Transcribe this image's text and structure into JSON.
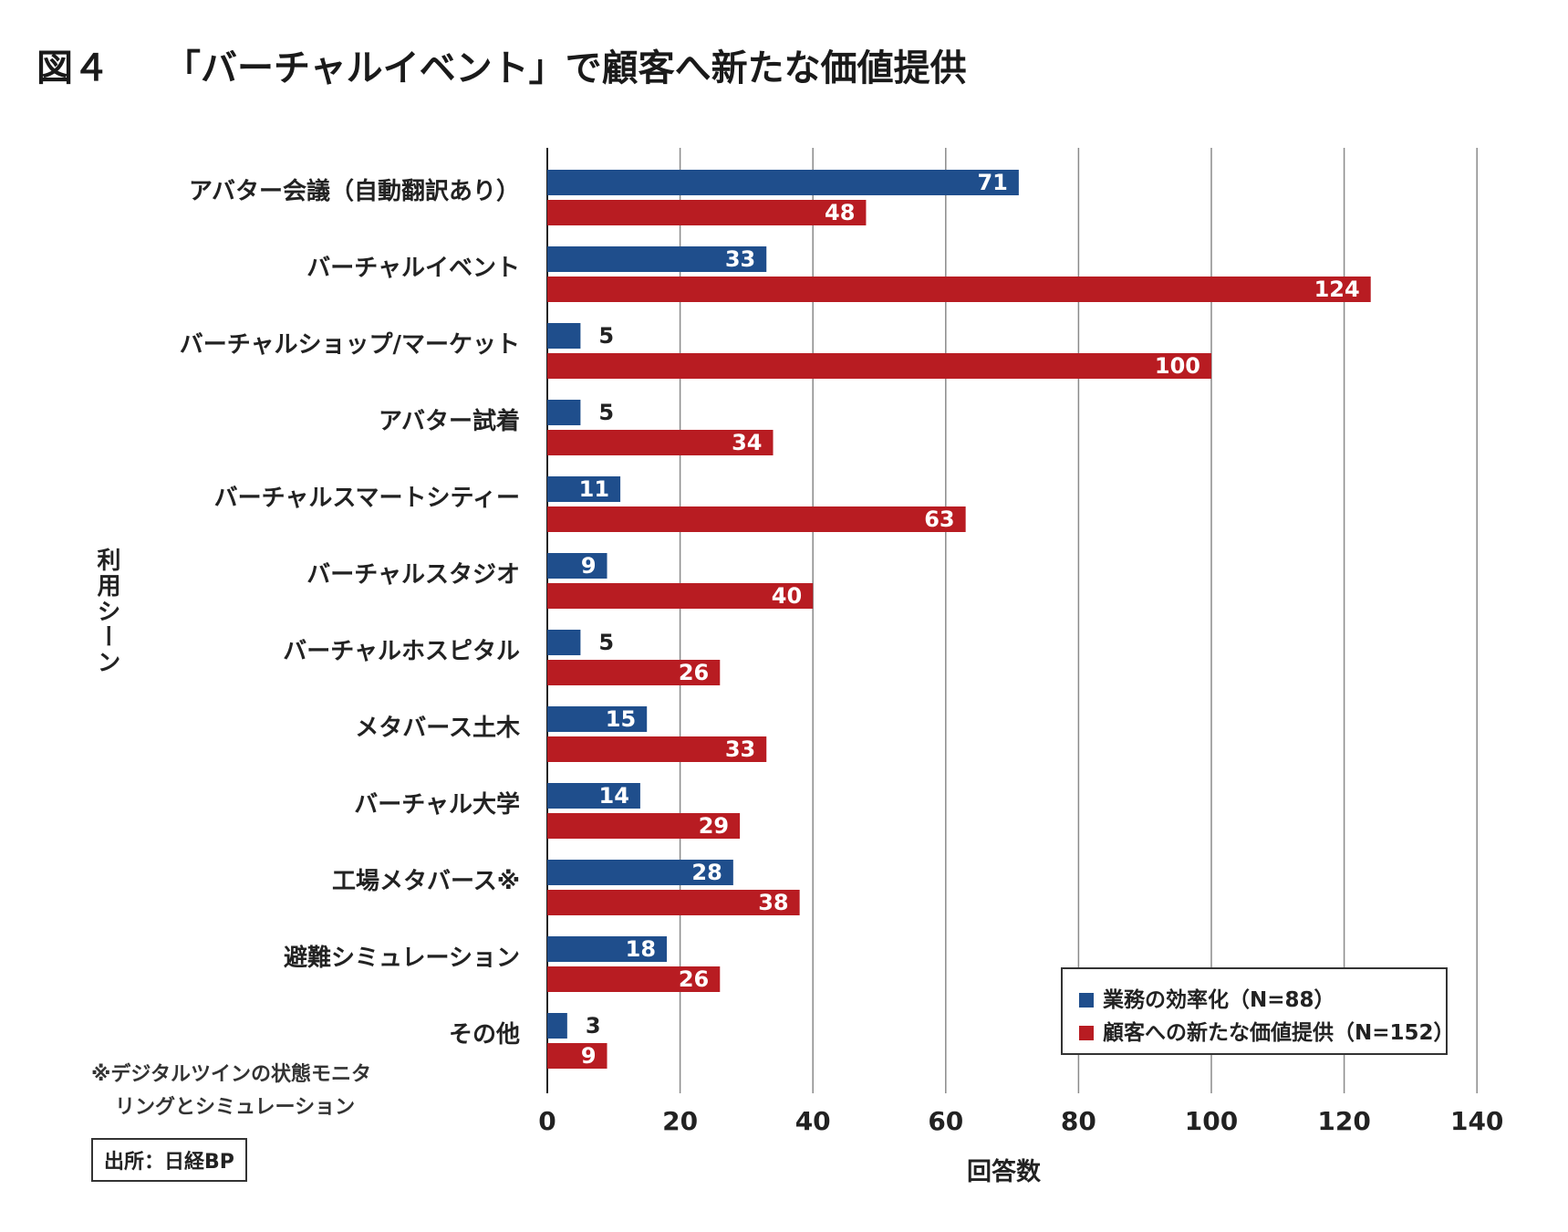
{
  "figure": {
    "number": "図４",
    "title": "「バーチャルイベント」で顧客へ新たな価値提供"
  },
  "chart_data": {
    "type": "bar",
    "orientation": "horizontal",
    "categories": [
      "アバター会議（自動翻訳あり）",
      "バーチャルイベント",
      "バーチャルショップ/マーケット",
      "アバター試着",
      "バーチャルスマートシティー",
      "バーチャルスタジオ",
      "バーチャルホスピタル",
      "メタバース土木",
      "バーチャル大学",
      "工場メタバース※",
      "避難シミュレーション",
      "その他"
    ],
    "series": [
      {
        "name": "業務の効率化（N=88）",
        "color": "#1f4e8c",
        "values": [
          71,
          33,
          5,
          5,
          11,
          9,
          5,
          15,
          14,
          28,
          18,
          3
        ]
      },
      {
        "name": "顧客への新たな価値提供（N=152）",
        "color": "#b81c22",
        "values": [
          48,
          124,
          100,
          34,
          63,
          40,
          26,
          33,
          29,
          38,
          26,
          9
        ]
      }
    ],
    "xlabel": "回答数",
    "ylabel": "利用シーン",
    "xlim": [
      0,
      140
    ],
    "xticks": [
      0,
      20,
      40,
      60,
      80,
      100,
      120,
      140
    ],
    "grid": true,
    "legend_position": "bottom-right"
  },
  "footnote": {
    "line1": "※デジタルツインの状態モニタ",
    "line2": "リングとシミュレーション"
  },
  "source": "出所：日経BP"
}
